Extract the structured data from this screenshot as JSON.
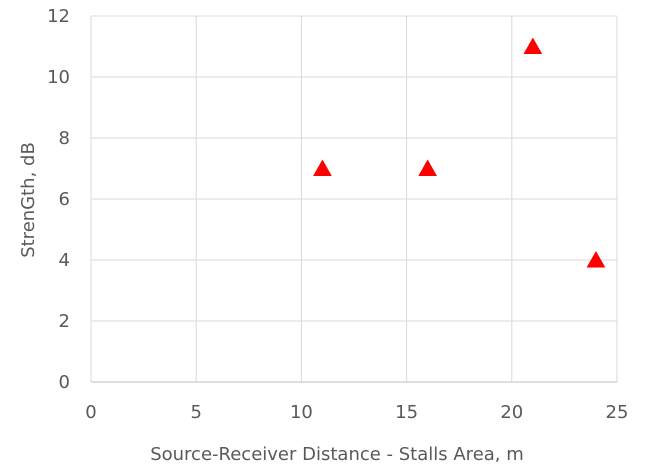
{
  "chart_data": {
    "type": "scatter",
    "title": "",
    "xlabel": "Source-Receiver Distance - Stalls Area, m",
    "ylabel": "StrenGth, dB",
    "xlim": [
      0,
      25
    ],
    "ylim": [
      0,
      12
    ],
    "xticks": [
      0,
      5,
      10,
      15,
      20,
      25
    ],
    "yticks": [
      0,
      2,
      4,
      6,
      8,
      10,
      12
    ],
    "grid": true,
    "legend": "none",
    "marker": "triangle",
    "series": [
      {
        "color": "#ff0000",
        "points": [
          {
            "x": 11,
            "y": 7
          },
          {
            "x": 16,
            "y": 7
          },
          {
            "x": 21,
            "y": 11
          },
          {
            "x": 24,
            "y": 4
          }
        ]
      }
    ]
  }
}
